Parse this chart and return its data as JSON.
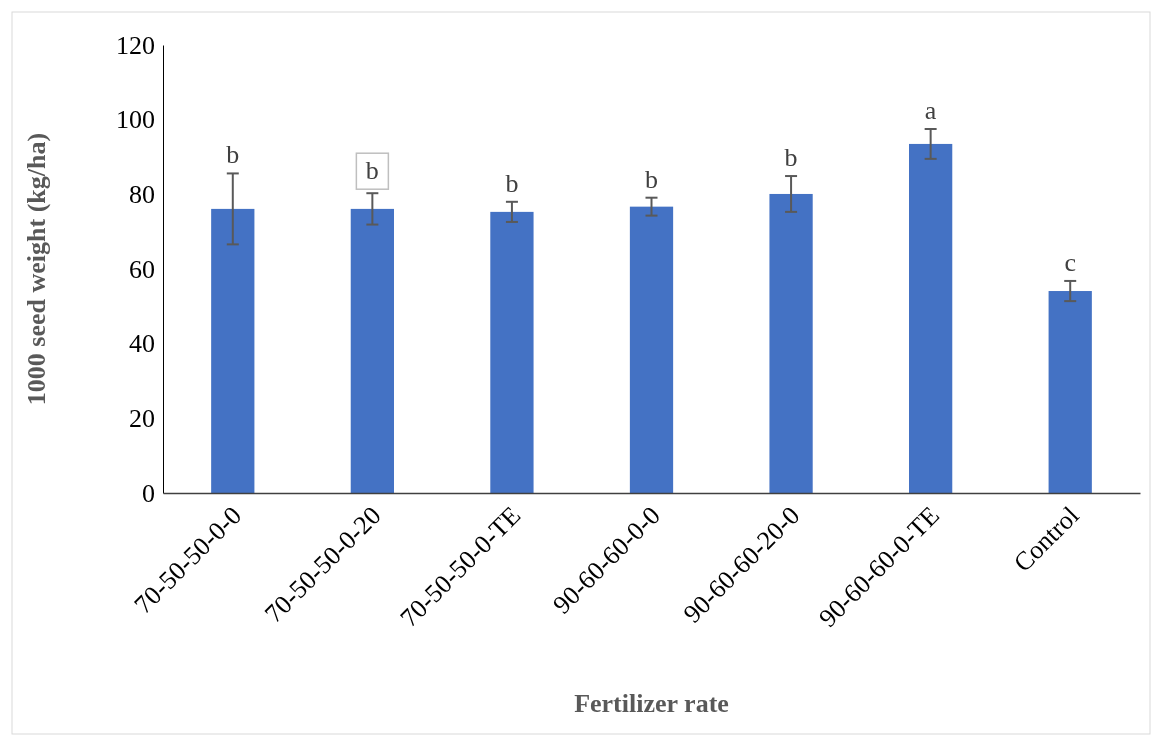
{
  "chart_data": {
    "type": "bar",
    "xlabel": "Fertilizer rate",
    "ylabel": "1000 seed weight (kg/ha)",
    "categories": [
      "70-50-50-0-0",
      "70-50-50-0-20",
      "70-50-50-0-TE",
      "90-60-60-0-0",
      "90-60-60-20-0",
      "90-60-60-0-TE",
      "Control"
    ],
    "values": [
      76.1,
      76.1,
      75.3,
      76.7,
      80.1,
      93.5,
      54.1
    ],
    "errors": [
      9.5,
      4.2,
      2.7,
      2.4,
      4.8,
      4,
      2.7
    ],
    "color": "#4472c4",
    "ylim": [
      0,
      120
    ],
    "yticks": [
      0,
      20,
      40,
      60,
      80,
      100,
      120
    ],
    "grid": false,
    "annotations": [
      "b",
      "b",
      "b",
      "b",
      "b",
      "a",
      "c"
    ]
  }
}
